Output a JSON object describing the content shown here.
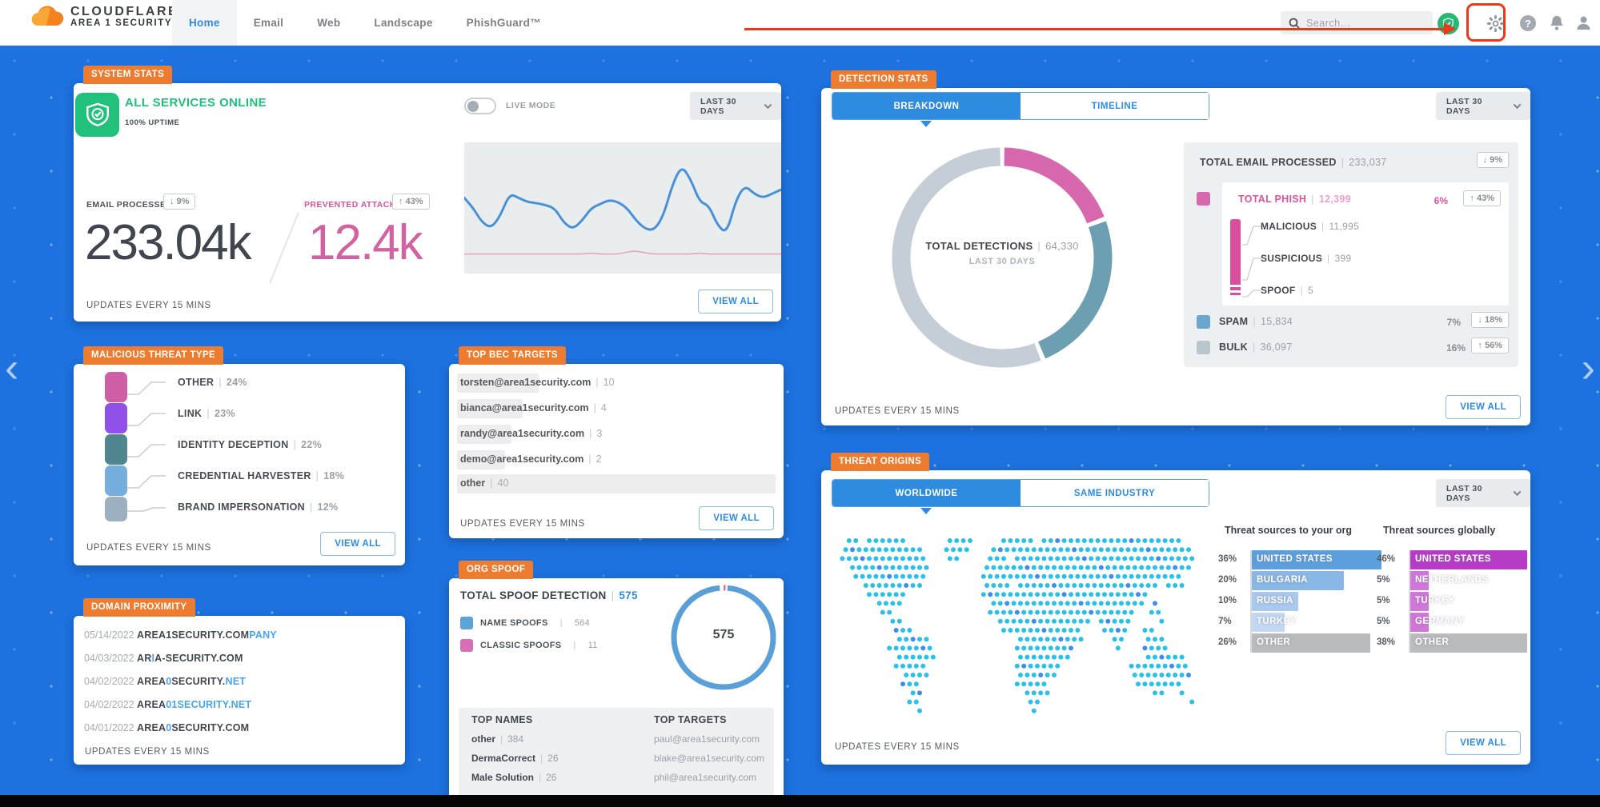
{
  "sep": "|",
  "annotation": {
    "arrow_color": "#e8391d",
    "target": "settings-gear"
  },
  "page_nav": {
    "prev": "‹",
    "next": "›"
  },
  "nav": {
    "brand_line1": "CLOUDFLARE",
    "brand_line2": "AREA 1 SECURITY",
    "items": [
      {
        "label": "Home"
      },
      {
        "label": "Email"
      },
      {
        "label": "Web"
      },
      {
        "label": "Landscape"
      },
      {
        "label": "PhishGuard™"
      }
    ],
    "search_placeholder": "Search…"
  },
  "cards": {
    "system": {
      "tag": "SYSTEM STATS",
      "status": "ALL SERVICES ONLINE",
      "uptime": "100% UPTIME",
      "live_mode": "LIVE MODE",
      "range": "LAST 30 DAYS",
      "email_label": "EMAIL PROCESSED",
      "email_delta": "↓ 9%",
      "email_value": "233.04k",
      "prevented_label": "PREVENTED ATTACKS",
      "prevented_delta": "↑ 43%",
      "prevented_value": "12.4k",
      "view_all": "VIEW ALL",
      "updates": "UPDATES EVERY 15 MINS"
    },
    "malicious": {
      "tag": "MALICIOUS THREAT TYPE",
      "items": [
        {
          "label": "OTHER",
          "pct": "24%",
          "color": "#cf5fa5"
        },
        {
          "label": "LINK",
          "pct": "23%",
          "color": "#8f51e8"
        },
        {
          "label": "IDENTITY DECEPTION",
          "pct": "22%",
          "color": "#4f868f"
        },
        {
          "label": "CREDENTIAL HARVESTER",
          "pct": "18%",
          "color": "#76aede"
        },
        {
          "label": "BRAND IMPERSONATION",
          "pct": "12%",
          "color": "#9cb0c0"
        }
      ],
      "view_all": "VIEW ALL",
      "updates": "UPDATES EVERY 15 MINS"
    },
    "domain": {
      "tag": "DOMAIN PROXIMITY",
      "rows": [
        {
          "date": "05/14/2022",
          "parts": [
            {
              "t": "AREA1SECURITY.COM"
            },
            {
              "t": "PANY",
              "hl": true
            }
          ]
        },
        {
          "date": "04/03/2022",
          "parts": [
            {
              "t": "AR"
            },
            {
              "t": "I",
              "hl": true
            },
            {
              "t": "A-SECURITY.COM"
            }
          ]
        },
        {
          "date": "04/02/2022",
          "parts": [
            {
              "t": "AREA"
            },
            {
              "t": "0",
              "hl": true
            },
            {
              "t": "SECURITY."
            },
            {
              "t": "NET",
              "hl": true
            }
          ]
        },
        {
          "date": "04/02/2022",
          "parts": [
            {
              "t": "AREA"
            },
            {
              "t": "01SECURITY.NET",
              "hl": true
            }
          ]
        },
        {
          "date": "04/01/2022",
          "parts": [
            {
              "t": "AREA"
            },
            {
              "t": "0",
              "hl": true
            },
            {
              "t": "SECURITY.COM"
            }
          ]
        }
      ],
      "updates": "UPDATES EVERY 15 MINS"
    },
    "bec": {
      "tag": "TOP BEC TARGETS",
      "rows": [
        {
          "email": "torsten@area1security.com",
          "count": "10"
        },
        {
          "email": "bianca@area1security.com",
          "count": "4"
        },
        {
          "email": "randy@area1security.com",
          "count": "3"
        },
        {
          "email": "demo@area1security.com",
          "count": "2"
        },
        {
          "email": "other",
          "count": "40"
        }
      ],
      "view_all": "VIEW ALL",
      "updates": "UPDATES EVERY 15 MINS"
    },
    "spoof": {
      "tag": "ORG SPOOF",
      "title": "TOTAL SPOOF DETECTION",
      "total": "575",
      "legend": [
        {
          "label": "NAME SPOOFS",
          "count": "564",
          "color": "#5ba3d9"
        },
        {
          "label": "CLASSIC SPOOFS",
          "count": "11",
          "color": "#da6eb4"
        }
      ],
      "donut_center": "575",
      "names_title": "TOP NAMES",
      "targets_title": "TOP TARGETS",
      "names": [
        {
          "name": "other",
          "count": "384"
        },
        {
          "name": "DermaCorrect",
          "count": "26"
        },
        {
          "name": "Male Solution",
          "count": "26"
        }
      ],
      "targets": [
        "paul@area1security.com",
        "blake@area1security.com",
        "phil@area1security.com"
      ]
    },
    "detection": {
      "tag": "DETECTION STATS",
      "tab_breakdown": "BREAKDOWN",
      "tab_timeline": "TIMELINE",
      "range": "LAST 30 DAYS",
      "donut_label": "TOTAL DETECTIONS",
      "donut_value": "64,330",
      "donut_sub": "LAST 30 DAYS",
      "email_label": "TOTAL EMAIL PROCESSED",
      "email_value": "233,037",
      "email_delta": "↓ 9%",
      "phish": {
        "label": "TOTAL PHISH",
        "value": "12,399",
        "pct": "6%",
        "delta": "↑ 43%",
        "children": [
          {
            "label": "MALICIOUS",
            "value": "11,995"
          },
          {
            "label": "SUSPICIOUS",
            "value": "399"
          },
          {
            "label": "SPOOF",
            "value": "5"
          }
        ]
      },
      "spam": {
        "label": "SPAM",
        "value": "15,834",
        "pct": "7%",
        "delta": "↓ 18%",
        "color": "#6ba6cb"
      },
      "bulk": {
        "label": "BULK",
        "value": "36,097",
        "pct": "16%",
        "delta": "↑ 56%",
        "color": "#b9c6ce"
      },
      "view_all": "VIEW ALL",
      "updates": "UPDATES EVERY 15 MINS"
    },
    "origins": {
      "tag": "THREAT ORIGINS",
      "tab_worldwide": "WORLDWIDE",
      "tab_industry": "SAME INDUSTRY",
      "range": "LAST 30 DAYS",
      "col1_title": "Threat sources to your org",
      "col2_title": "Threat sources globally",
      "org_bars": [
        {
          "pct": "36%",
          "label": "UNITED STATES",
          "width": "100%",
          "color": "#5d9fdc"
        },
        {
          "pct": "20%",
          "label": "BULGARIA",
          "width": "56%",
          "color": "#8ab8e6"
        },
        {
          "pct": "10%",
          "label": "RUSSIA",
          "width": "28%",
          "color": "#a9c9ee"
        },
        {
          "pct": "7%",
          "label": "TURKEY",
          "width": "20%",
          "color": "#c2d8f3"
        },
        {
          "pct": "26%",
          "label": "OTHER",
          "width": "72%",
          "color": "#b9bbbd"
        }
      ],
      "global_bars": [
        {
          "pct": "46%",
          "label": "UNITED STATES",
          "width": "100%",
          "color": "#b63cc6"
        },
        {
          "pct": "5%",
          "label": "NETHERLANDS",
          "width": "12%",
          "color": "#d077d9"
        },
        {
          "pct": "5%",
          "label": "TURKEY",
          "width": "12%",
          "color": "#d077d9"
        },
        {
          "pct": "5%",
          "label": "GERMANY",
          "width": "12%",
          "color": "#d077d9"
        },
        {
          "pct": "38%",
          "label": "OTHER",
          "width": "83%",
          "color": "#b9bbbd"
        }
      ],
      "view_all": "VIEW ALL",
      "updates": "UPDATES EVERY 15 MINS"
    }
  },
  "chart_data": [
    {
      "type": "line",
      "title": "System stats sparkline — LAST 30 DAYS",
      "legend_position": "none",
      "series": [
        {
          "name": "EMAIL PROCESSED",
          "approx_norm_values": [
            62,
            52,
            38,
            33,
            45,
            66,
            62,
            58,
            57,
            55,
            52,
            38,
            32,
            40,
            52,
            56,
            60,
            58,
            52,
            40,
            32,
            31,
            45,
            75,
            93,
            80,
            58,
            55,
            35,
            28,
            60,
            74,
            66,
            62,
            66,
            70
          ]
        },
        {
          "name": "PREVENTED ATTACKS",
          "approx_norm_values": [
            8,
            8,
            8,
            8,
            8,
            8,
            8,
            8,
            8,
            8,
            8,
            8,
            8,
            8,
            9,
            8,
            8,
            8,
            10,
            11,
            9,
            8,
            8,
            8,
            8,
            8,
            9,
            8,
            8,
            8,
            8,
            8,
            8,
            8,
            8,
            8
          ]
        }
      ],
      "note": "unlabeled sparkline; values approximate, normalized 0-100"
    },
    {
      "type": "pie",
      "title": "TOTAL DETECTIONS | 64,330 — LAST 30 DAYS",
      "slices": [
        {
          "label": "TOTAL PHISH",
          "value": 12399,
          "color": "#d868ae"
        },
        {
          "label": "SPAM",
          "value": 15834,
          "color": "#6d9fb3"
        },
        {
          "label": "BULK",
          "value": 36097,
          "color": "#c5ced6"
        }
      ]
    },
    {
      "type": "pie",
      "title": "TOTAL SPOOF DETECTION | 575",
      "slices": [
        {
          "label": "CLASSIC SPOOFS",
          "value": 11,
          "color": "#da6eb4"
        },
        {
          "label": "NAME SPOOFS",
          "value": 564,
          "color": "#5b9fd9"
        }
      ]
    },
    {
      "type": "bar",
      "title": "Threat sources to your org",
      "categories": [
        "UNITED STATES",
        "BULGARIA",
        "RUSSIA",
        "TURKEY",
        "OTHER"
      ],
      "values": [
        36,
        20,
        10,
        7,
        26
      ],
      "unit": "%"
    },
    {
      "type": "bar",
      "title": "Threat sources globally",
      "categories": [
        "UNITED STATES",
        "NETHERLANDS",
        "TURKEY",
        "GERMANY",
        "OTHER"
      ],
      "values": [
        46,
        5,
        5,
        5,
        38
      ],
      "unit": "%"
    },
    {
      "type": "bar",
      "title": "MALICIOUS THREAT TYPE",
      "categories": [
        "OTHER",
        "LINK",
        "IDENTITY DECEPTION",
        "CREDENTIAL HARVESTER",
        "BRAND IMPERSONATION"
      ],
      "values": [
        24,
        23,
        22,
        18,
        12
      ],
      "unit": "%"
    }
  ]
}
